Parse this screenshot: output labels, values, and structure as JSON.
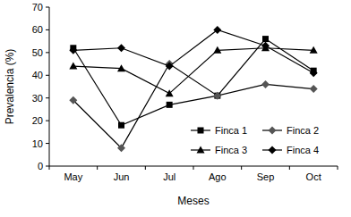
{
  "chart_data": {
    "type": "line",
    "x_label": "Meses",
    "y_label": "Prevalencia (%)",
    "categories": [
      "May",
      "Jun",
      "Jul",
      "Ago",
      "Sep",
      "Oct"
    ],
    "series": [
      {
        "name": "Finca 1",
        "color": "#000000",
        "marker": "square",
        "values": [
          52,
          18,
          27,
          31,
          56,
          42
        ]
      },
      {
        "name": "Finca 2",
        "color": "#555555",
        "marker": "diamond",
        "values": [
          29,
          8,
          45,
          31,
          36,
          34
        ]
      },
      {
        "name": "Finca 3",
        "color": "#000000",
        "marker": "triangle",
        "values": [
          44,
          43,
          32,
          51,
          52,
          51
        ]
      },
      {
        "name": "Finca 4",
        "color": "#000000",
        "marker": "diamond",
        "values": [
          51,
          52,
          44,
          60,
          53,
          41
        ]
      }
    ],
    "ylim": [
      0,
      70
    ],
    "yticks": [
      0,
      10,
      20,
      30,
      40,
      50,
      60,
      70
    ],
    "grid": false,
    "legend": "lower right"
  }
}
